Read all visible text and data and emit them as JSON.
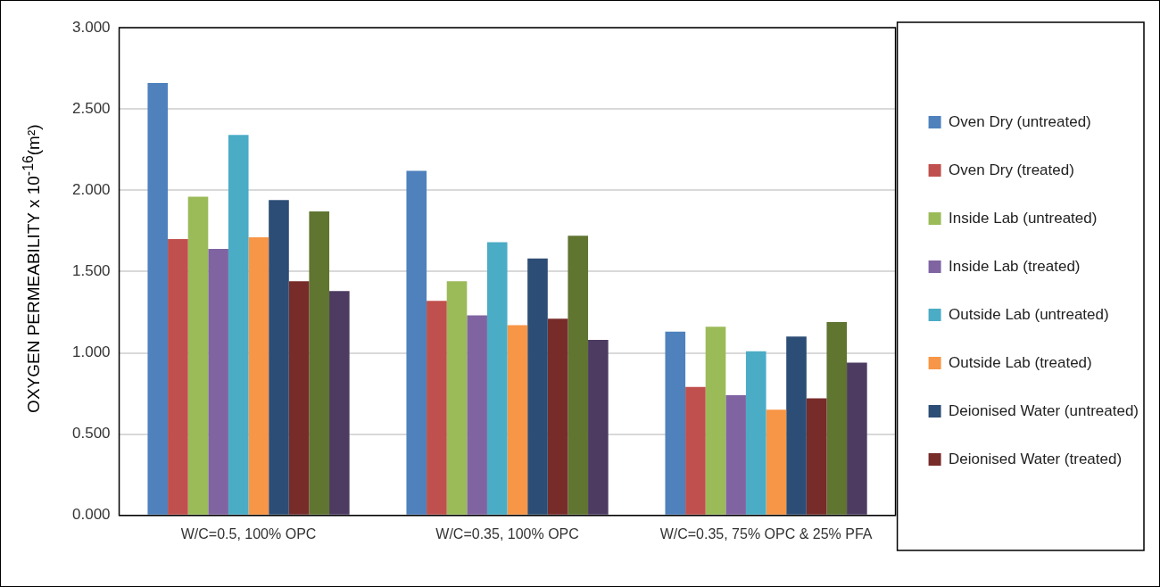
{
  "chart_data": {
    "type": "bar",
    "ylabel": "OXYGEN PERMEABILITY x 10$^{-16}$(m²)",
    "categories": [
      "W/C=0.5, 100% OPC",
      "W/C=0.35, 100% OPC",
      "W/C=0.35, 75% OPC & 25% PFA"
    ],
    "series": [
      {
        "name": "Oven Dry (untreated)",
        "color": "#4f81bd",
        "values": [
          2.66,
          2.12,
          1.13
        ]
      },
      {
        "name": "Oven Dry (treated)",
        "color": "#c0504d",
        "values": [
          1.7,
          1.32,
          0.79
        ]
      },
      {
        "name": "Inside Lab (untreated)",
        "color": "#9bbb59",
        "values": [
          1.96,
          1.44,
          1.16
        ]
      },
      {
        "name": "Inside Lab (treated)",
        "color": "#8064a2",
        "values": [
          1.64,
          1.23,
          0.74
        ]
      },
      {
        "name": "Outside Lab (untreated)",
        "color": "#4bacc6",
        "values": [
          2.34,
          1.68,
          1.01
        ]
      },
      {
        "name": "Outside Lab (treated)",
        "color": "#f79646",
        "values": [
          1.71,
          1.17,
          0.65
        ]
      },
      {
        "name": "Deionised Water (untreated)",
        "color": "#2c4d75",
        "values": [
          1.94,
          1.58,
          1.1
        ]
      },
      {
        "name": "Deionised Water (treated)",
        "color": "#772c2a",
        "values": [
          1.44,
          1.21,
          0.72
        ]
      },
      {
        "color": "#5f7530",
        "values": [
          1.87,
          1.72,
          1.19
        ]
      },
      {
        "color": "#4d3b62",
        "values": [
          1.38,
          1.08,
          0.94
        ]
      }
    ],
    "ylim": [
      0,
      3
    ],
    "yticks": [
      {
        "value": 0,
        "label": "0.000"
      },
      {
        "value": 0.5,
        "label": "0.500"
      },
      {
        "value": 1,
        "label": "1.000"
      },
      {
        "value": 1.5,
        "label": "1.500"
      },
      {
        "value": 2,
        "label": "2.000"
      },
      {
        "value": 2.5,
        "label": "2.500"
      },
      {
        "value": 3,
        "label": "3.000"
      }
    ],
    "grid": "y",
    "legend": "right"
  }
}
